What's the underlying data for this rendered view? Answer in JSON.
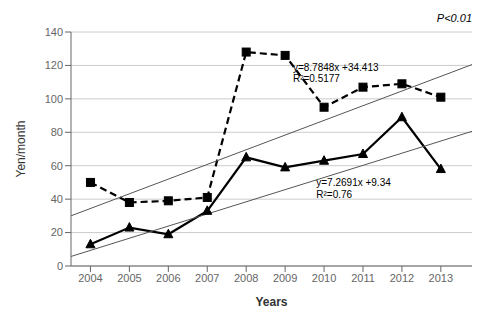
{
  "chart_data": {
    "type": "line",
    "xlabel": "Years",
    "ylabel": "Yen/month",
    "x": [
      2004,
      2005,
      2006,
      2007,
      2008,
      2009,
      2010,
      2011,
      2012,
      2013
    ],
    "series": [
      {
        "values": [
          50,
          38,
          39,
          41,
          128,
          126,
          95,
          107,
          109,
          101
        ],
        "color": "#000000",
        "marker": "square",
        "line_style": "dashed"
      },
      {
        "values": [
          13,
          23,
          19,
          33,
          65,
          59,
          63,
          67,
          89,
          58
        ],
        "color": "#000000",
        "marker": "triangle",
        "line_style": "solid"
      },
      {
        "x": [
          2003.5,
          2013.8
        ],
        "values": [
          30.0206,
          120.50404
        ],
        "color": "#555555",
        "marker": "none",
        "line_style": "solid"
      },
      {
        "x": [
          2003.5,
          2013.8
        ],
        "values": [
          5.70545,
          80.57718
        ],
        "color": "#555555",
        "marker": "none",
        "line_style": "solid"
      }
    ],
    "annotations": [
      "y=8.7848x +34.413",
      "R²=0.5177",
      "y=7.2691x +9.34",
      "R²=0.76",
      "P<0.01"
    ],
    "xlim": [
      2003.5,
      2013.8
    ],
    "xticks": [
      2004,
      2005,
      2006,
      2007,
      2008,
      2009,
      2010,
      2011,
      2012,
      2013
    ],
    "ylim": [
      0,
      140
    ],
    "yticks": [
      0,
      20,
      40,
      60,
      80,
      100,
      120,
      140
    ],
    "grid": true
  }
}
